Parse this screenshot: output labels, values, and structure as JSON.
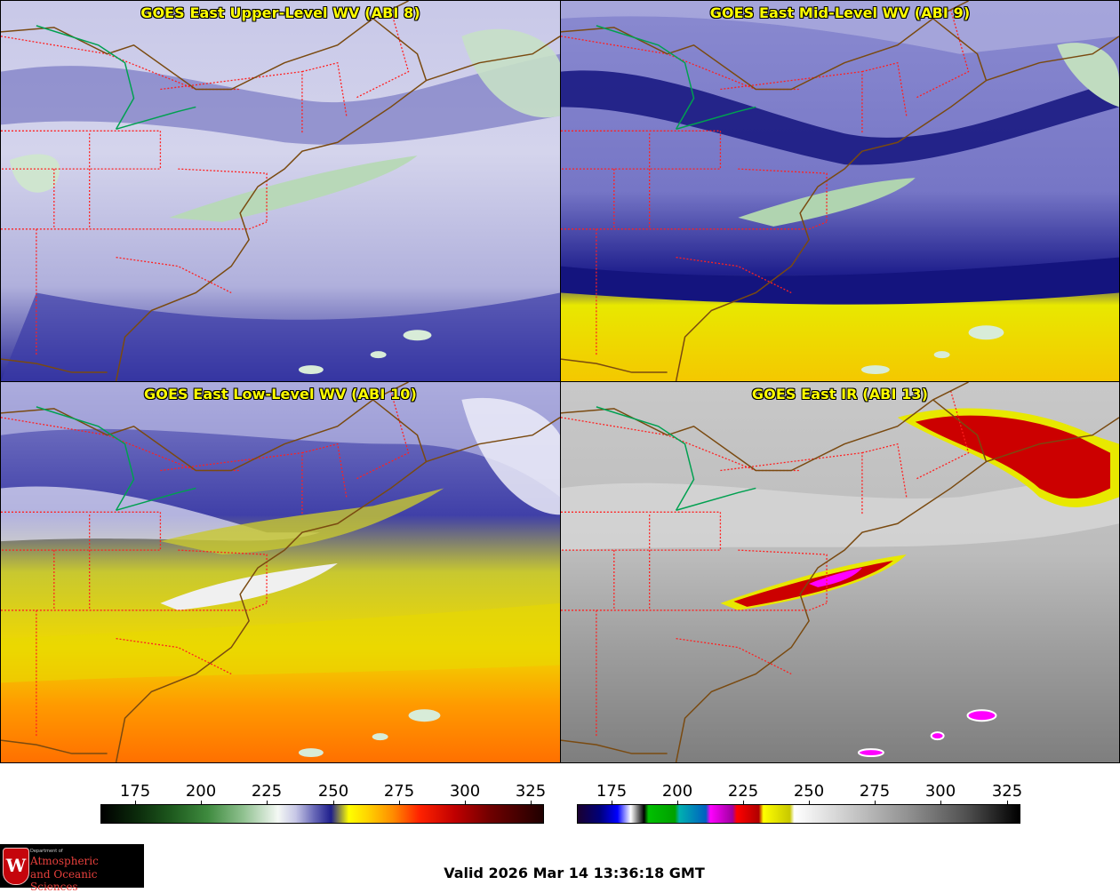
{
  "panels": [
    {
      "title": "GOES East Upper-Level WV (ABI 8)"
    },
    {
      "title": "GOES East Mid-Level WV (ABI 9)"
    },
    {
      "title": "GOES East Low-Level WV (ABI 10)"
    },
    {
      "title": "GOES East IR (ABI 13)"
    }
  ],
  "colorbars": {
    "wv_ticks": [
      "175",
      "200",
      "225",
      "250",
      "275",
      "300",
      "325"
    ],
    "ir_ticks": [
      "175",
      "200",
      "225",
      "250",
      "275",
      "300",
      "325"
    ]
  },
  "logo": {
    "letter": "W",
    "dept": "Department of",
    "line1": "Atmospheric",
    "line2": "and Oceanic Sciences"
  },
  "valid_time": "Valid 2026 Mar 14 13:36:18 GMT",
  "colors": {
    "title_text": "#ffff00",
    "state_borders": "#ff2020",
    "coastline": "#7a4a10",
    "lake_outline": "#00a050"
  }
}
